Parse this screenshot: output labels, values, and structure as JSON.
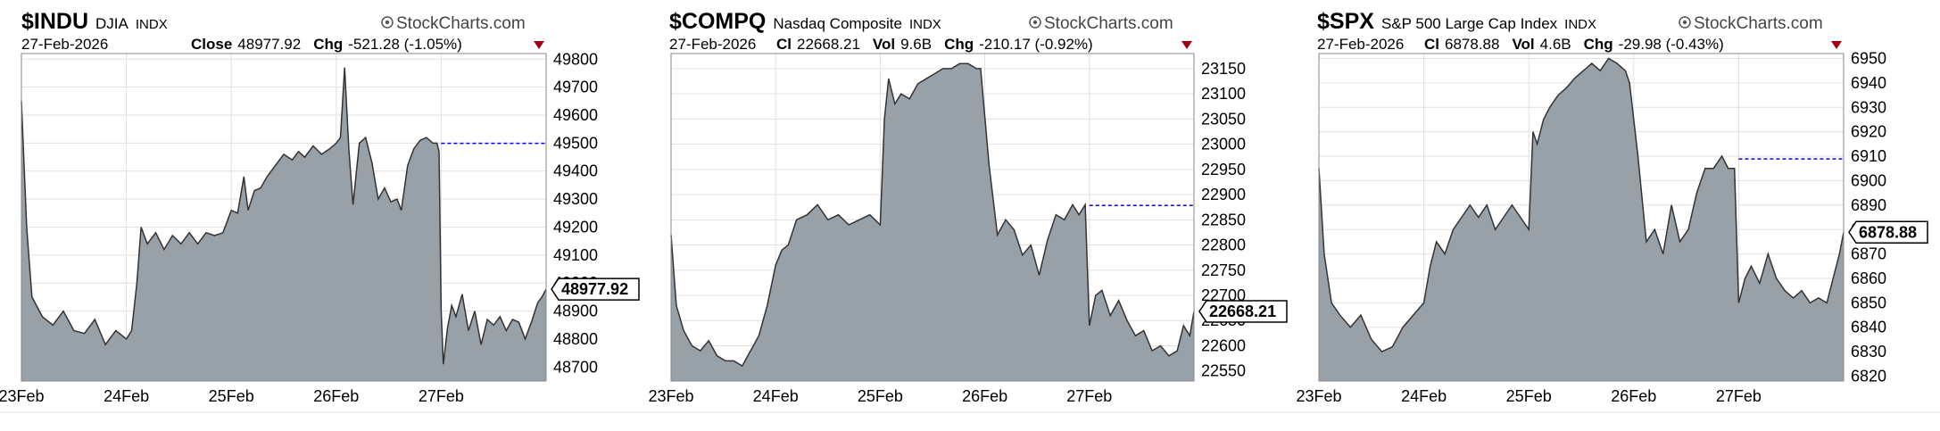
{
  "brand": "StockCharts.com",
  "brand_icon": "copyright-icon",
  "colors": {
    "area_fill": "#98a0a8",
    "area_line": "#333333",
    "grid": "#e0e0e0",
    "ref_line": "#0000ff",
    "down_arrow": "#a00018"
  },
  "charts": [
    {
      "symbol": "$INDU",
      "name": "DJIA",
      "exchange": "INDX",
      "date": "27-Feb-2026",
      "metrics": [
        {
          "label": "Close",
          "value": "48977.92"
        },
        {
          "label": "Chg",
          "value": "-521.28 (-1.05%)"
        }
      ],
      "last_label": "48977.92",
      "chart_data": {
        "type": "area",
        "x_labels": [
          "23Feb",
          "24Feb",
          "25Feb",
          "26Feb",
          "27Feb"
        ],
        "y_ticks": [
          "49800",
          "49700",
          "49600",
          "49500",
          "49400",
          "49300",
          "49200",
          "49100",
          "49000",
          "48900",
          "48800",
          "48700"
        ],
        "ylim": [
          48650,
          49820
        ],
        "prev_close": 49499.2,
        "last": 48977.92,
        "series": [
          [
            0,
            49650
          ],
          [
            0.05,
            49200
          ],
          [
            0.1,
            48950
          ],
          [
            0.2,
            48880
          ],
          [
            0.3,
            48850
          ],
          [
            0.4,
            48900
          ],
          [
            0.5,
            48830
          ],
          [
            0.6,
            48820
          ],
          [
            0.7,
            48870
          ],
          [
            0.8,
            48780
          ],
          [
            0.9,
            48830
          ],
          [
            1.0,
            48800
          ],
          [
            1.05,
            48830
          ],
          [
            1.1,
            49000
          ],
          [
            1.14,
            49200
          ],
          [
            1.2,
            49140
          ],
          [
            1.28,
            49180
          ],
          [
            1.36,
            49120
          ],
          [
            1.44,
            49170
          ],
          [
            1.52,
            49140
          ],
          [
            1.6,
            49180
          ],
          [
            1.68,
            49140
          ],
          [
            1.76,
            49180
          ],
          [
            1.84,
            49170
          ],
          [
            1.92,
            49180
          ],
          [
            2.0,
            49260
          ],
          [
            2.06,
            49250
          ],
          [
            2.12,
            49380
          ],
          [
            2.16,
            49260
          ],
          [
            2.22,
            49330
          ],
          [
            2.28,
            49340
          ],
          [
            2.34,
            49380
          ],
          [
            2.42,
            49420
          ],
          [
            2.5,
            49460
          ],
          [
            2.58,
            49440
          ],
          [
            2.64,
            49470
          ],
          [
            2.7,
            49450
          ],
          [
            2.78,
            49490
          ],
          [
            2.86,
            49460
          ],
          [
            2.94,
            49480
          ],
          [
            3.0,
            49500
          ],
          [
            3.04,
            49520
          ],
          [
            3.08,
            49770
          ],
          [
            3.12,
            49480
          ],
          [
            3.16,
            49280
          ],
          [
            3.22,
            49500
          ],
          [
            3.28,
            49520
          ],
          [
            3.34,
            49430
          ],
          [
            3.4,
            49300
          ],
          [
            3.46,
            49340
          ],
          [
            3.52,
            49290
          ],
          [
            3.58,
            49300
          ],
          [
            3.62,
            49260
          ],
          [
            3.68,
            49420
          ],
          [
            3.74,
            49480
          ],
          [
            3.8,
            49510
          ],
          [
            3.86,
            49520
          ],
          [
            3.92,
            49500
          ],
          [
            3.96,
            49500
          ],
          [
            3.98,
            49470
          ],
          [
            4.0,
            48900
          ],
          [
            4.02,
            48710
          ],
          [
            4.06,
            48840
          ],
          [
            4.1,
            48920
          ],
          [
            4.14,
            48880
          ],
          [
            4.2,
            48960
          ],
          [
            4.26,
            48830
          ],
          [
            4.32,
            48900
          ],
          [
            4.38,
            48780
          ],
          [
            4.44,
            48870
          ],
          [
            4.5,
            48850
          ],
          [
            4.56,
            48880
          ],
          [
            4.62,
            48830
          ],
          [
            4.68,
            48870
          ],
          [
            4.74,
            48860
          ],
          [
            4.8,
            48800
          ],
          [
            4.86,
            48860
          ],
          [
            4.92,
            48930
          ],
          [
            4.96,
            48950
          ],
          [
            5.0,
            48977.92
          ]
        ]
      }
    },
    {
      "symbol": "$COMPQ",
      "name": "Nasdaq Composite",
      "exchange": "INDX",
      "date": "27-Feb-2026",
      "metrics": [
        {
          "label": "Cl",
          "value": "22668.21"
        },
        {
          "label": "Vol",
          "value": "9.6B"
        },
        {
          "label": "Chg",
          "value": "-210.17 (-0.92%)"
        }
      ],
      "last_label": "22668.21",
      "chart_data": {
        "type": "area",
        "x_labels": [
          "23Feb",
          "24Feb",
          "25Feb",
          "26Feb",
          "27Feb"
        ],
        "y_ticks": [
          "23150",
          "23100",
          "23050",
          "23000",
          "22950",
          "22900",
          "22850",
          "22800",
          "22750",
          "22700",
          "22650",
          "22600",
          "22550"
        ],
        "ylim": [
          22530,
          23180
        ],
        "prev_close": 22878.38,
        "last": 22668.21,
        "series": [
          [
            0,
            22820
          ],
          [
            0.05,
            22680
          ],
          [
            0.12,
            22630
          ],
          [
            0.2,
            22600
          ],
          [
            0.28,
            22590
          ],
          [
            0.36,
            22610
          ],
          [
            0.44,
            22580
          ],
          [
            0.52,
            22570
          ],
          [
            0.6,
            22570
          ],
          [
            0.68,
            22560
          ],
          [
            0.76,
            22590
          ],
          [
            0.84,
            22620
          ],
          [
            0.92,
            22680
          ],
          [
            1.0,
            22760
          ],
          [
            1.06,
            22790
          ],
          [
            1.12,
            22800
          ],
          [
            1.2,
            22850
          ],
          [
            1.3,
            22860
          ],
          [
            1.4,
            22880
          ],
          [
            1.5,
            22850
          ],
          [
            1.6,
            22860
          ],
          [
            1.7,
            22840
          ],
          [
            1.8,
            22850
          ],
          [
            1.9,
            22860
          ],
          [
            2.0,
            22840
          ],
          [
            2.04,
            23050
          ],
          [
            2.08,
            23130
          ],
          [
            2.14,
            23080
          ],
          [
            2.2,
            23100
          ],
          [
            2.28,
            23090
          ],
          [
            2.36,
            23120
          ],
          [
            2.44,
            23130
          ],
          [
            2.52,
            23140
          ],
          [
            2.6,
            23150
          ],
          [
            2.68,
            23150
          ],
          [
            2.76,
            23160
          ],
          [
            2.84,
            23160
          ],
          [
            2.92,
            23150
          ],
          [
            2.96,
            23150
          ],
          [
            3.04,
            22960
          ],
          [
            3.12,
            22820
          ],
          [
            3.2,
            22850
          ],
          [
            3.28,
            22830
          ],
          [
            3.36,
            22780
          ],
          [
            3.44,
            22800
          ],
          [
            3.52,
            22740
          ],
          [
            3.6,
            22810
          ],
          [
            3.68,
            22860
          ],
          [
            3.76,
            22850
          ],
          [
            3.84,
            22880
          ],
          [
            3.9,
            22860
          ],
          [
            3.96,
            22880
          ],
          [
            4.0,
            22640
          ],
          [
            4.06,
            22700
          ],
          [
            4.12,
            22710
          ],
          [
            4.2,
            22660
          ],
          [
            4.28,
            22690
          ],
          [
            4.36,
            22650
          ],
          [
            4.44,
            22620
          ],
          [
            4.52,
            22630
          ],
          [
            4.6,
            22590
          ],
          [
            4.68,
            22600
          ],
          [
            4.76,
            22580
          ],
          [
            4.84,
            22590
          ],
          [
            4.9,
            22640
          ],
          [
            4.96,
            22620
          ],
          [
            5.0,
            22668.21
          ]
        ]
      }
    },
    {
      "symbol": "$SPX",
      "name": "S&P 500 Large Cap Index",
      "exchange": "INDX",
      "date": "27-Feb-2026",
      "metrics": [
        {
          "label": "Cl",
          "value": "6878.88"
        },
        {
          "label": "Vol",
          "value": "4.6B"
        },
        {
          "label": "Chg",
          "value": "-29.98 (-0.43%)"
        }
      ],
      "last_label": "6878.88",
      "chart_data": {
        "type": "area",
        "x_labels": [
          "23Feb",
          "24Feb",
          "25Feb",
          "26Feb",
          "27Feb"
        ],
        "y_ticks": [
          "6950",
          "6940",
          "6930",
          "6920",
          "6910",
          "6900",
          "6890",
          "6880",
          "6870",
          "6860",
          "6850",
          "6840",
          "6830",
          "6820"
        ],
        "ylim": [
          6818,
          6952
        ],
        "prev_close": 6908.86,
        "last": 6878.88,
        "series": [
          [
            0,
            6905
          ],
          [
            0.05,
            6870
          ],
          [
            0.12,
            6850
          ],
          [
            0.2,
            6845
          ],
          [
            0.3,
            6840
          ],
          [
            0.4,
            6845
          ],
          [
            0.5,
            6835
          ],
          [
            0.6,
            6830
          ],
          [
            0.7,
            6832
          ],
          [
            0.8,
            6840
          ],
          [
            0.9,
            6845
          ],
          [
            1.0,
            6850
          ],
          [
            1.06,
            6865
          ],
          [
            1.12,
            6875
          ],
          [
            1.2,
            6870
          ],
          [
            1.28,
            6880
          ],
          [
            1.36,
            6885
          ],
          [
            1.44,
            6890
          ],
          [
            1.52,
            6885
          ],
          [
            1.6,
            6890
          ],
          [
            1.68,
            6880
          ],
          [
            1.76,
            6885
          ],
          [
            1.84,
            6890
          ],
          [
            1.92,
            6885
          ],
          [
            2.0,
            6880
          ],
          [
            2.04,
            6920
          ],
          [
            2.08,
            6915
          ],
          [
            2.14,
            6925
          ],
          [
            2.2,
            6930
          ],
          [
            2.28,
            6935
          ],
          [
            2.36,
            6938
          ],
          [
            2.44,
            6942
          ],
          [
            2.52,
            6945
          ],
          [
            2.6,
            6948
          ],
          [
            2.68,
            6945
          ],
          [
            2.76,
            6950
          ],
          [
            2.84,
            6948
          ],
          [
            2.92,
            6945
          ],
          [
            2.96,
            6940
          ],
          [
            3.04,
            6910
          ],
          [
            3.12,
            6875
          ],
          [
            3.2,
            6880
          ],
          [
            3.28,
            6870
          ],
          [
            3.36,
            6890
          ],
          [
            3.44,
            6875
          ],
          [
            3.52,
            6880
          ],
          [
            3.6,
            6895
          ],
          [
            3.68,
            6905
          ],
          [
            3.76,
            6905
          ],
          [
            3.84,
            6910
          ],
          [
            3.9,
            6905
          ],
          [
            3.96,
            6905
          ],
          [
            4.0,
            6850
          ],
          [
            4.06,
            6860
          ],
          [
            4.12,
            6865
          ],
          [
            4.2,
            6858
          ],
          [
            4.28,
            6870
          ],
          [
            4.36,
            6860
          ],
          [
            4.44,
            6855
          ],
          [
            4.52,
            6852
          ],
          [
            4.6,
            6855
          ],
          [
            4.68,
            6850
          ],
          [
            4.76,
            6852
          ],
          [
            4.84,
            6850
          ],
          [
            4.9,
            6860
          ],
          [
            4.96,
            6870
          ],
          [
            5.0,
            6878.88
          ]
        ]
      }
    }
  ]
}
